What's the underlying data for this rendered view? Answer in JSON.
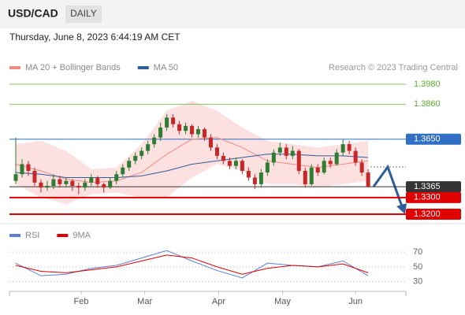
{
  "header": {
    "symbol": "USD/CAD",
    "period": "DAILY",
    "timestamp": "Thursday, June 8, 2023 6:44:19 AM CET",
    "credit": "Research © 2023 Trading Central"
  },
  "chart_data": [
    {
      "type": "candlestick",
      "up_color": "#2e7d32",
      "down_color": "#c62828",
      "xlim": [
        -1,
        62
      ],
      "ylim": [
        1.3148,
        1.406
      ],
      "candles": [
        [
          1.34,
          1.366,
          1.338,
          1.344
        ],
        [
          1.344,
          1.353,
          1.342,
          1.35
        ],
        [
          1.35,
          1.352,
          1.343,
          1.346
        ],
        [
          1.346,
          1.348,
          1.337,
          1.339
        ],
        [
          1.339,
          1.341,
          1.333,
          1.336
        ],
        [
          1.336,
          1.34,
          1.334,
          1.337
        ],
        [
          1.337,
          1.344,
          1.335,
          1.341
        ],
        [
          1.341,
          1.343,
          1.336,
          1.338
        ],
        [
          1.338,
          1.342,
          1.336,
          1.34
        ],
        [
          1.34,
          1.341,
          1.334,
          1.337
        ],
        [
          1.337,
          1.339,
          1.332,
          1.336
        ],
        [
          1.336,
          1.341,
          1.334,
          1.339
        ],
        [
          1.339,
          1.344,
          1.337,
          1.342
        ],
        [
          1.342,
          1.343,
          1.336,
          1.338
        ],
        [
          1.338,
          1.339,
          1.333,
          1.336
        ],
        [
          1.336,
          1.342,
          1.335,
          1.34
        ],
        [
          1.34,
          1.346,
          1.338,
          1.344
        ],
        [
          1.344,
          1.35,
          1.342,
          1.348
        ],
        [
          1.348,
          1.354,
          1.346,
          1.352
        ],
        [
          1.352,
          1.357,
          1.35,
          1.355
        ],
        [
          1.355,
          1.36,
          1.353,
          1.358
        ],
        [
          1.358,
          1.364,
          1.356,
          1.362
        ],
        [
          1.362,
          1.368,
          1.36,
          1.366
        ],
        [
          1.366,
          1.375,
          1.364,
          1.372
        ],
        [
          1.372,
          1.38,
          1.37,
          1.378
        ],
        [
          1.378,
          1.38,
          1.372,
          1.374
        ],
        [
          1.374,
          1.376,
          1.368,
          1.37
        ],
        [
          1.37,
          1.375,
          1.368,
          1.373
        ],
        [
          1.373,
          1.374,
          1.366,
          1.368
        ],
        [
          1.368,
          1.373,
          1.366,
          1.371
        ],
        [
          1.371,
          1.372,
          1.364,
          1.366
        ],
        [
          1.366,
          1.368,
          1.358,
          1.36
        ],
        [
          1.36,
          1.362,
          1.353,
          1.355
        ],
        [
          1.355,
          1.357,
          1.35,
          1.352
        ],
        [
          1.352,
          1.354,
          1.347,
          1.349
        ],
        [
          1.349,
          1.354,
          1.347,
          1.352
        ],
        [
          1.352,
          1.353,
          1.344,
          1.346
        ],
        [
          1.346,
          1.348,
          1.34,
          1.342
        ],
        [
          1.342,
          1.344,
          1.335,
          1.338
        ],
        [
          1.338,
          1.347,
          1.336,
          1.345
        ],
        [
          1.345,
          1.353,
          1.343,
          1.351
        ],
        [
          1.351,
          1.359,
          1.349,
          1.357
        ],
        [
          1.357,
          1.363,
          1.355,
          1.36
        ],
        [
          1.36,
          1.362,
          1.353,
          1.355
        ],
        [
          1.355,
          1.361,
          1.353,
          1.358
        ],
        [
          1.358,
          1.359,
          1.344,
          1.346
        ],
        [
          1.346,
          1.348,
          1.336,
          1.338
        ],
        [
          1.338,
          1.35,
          1.337,
          1.348
        ],
        [
          1.348,
          1.35,
          1.343,
          1.345
        ],
        [
          1.345,
          1.354,
          1.344,
          1.352
        ],
        [
          1.352,
          1.354,
          1.348,
          1.35
        ],
        [
          1.35,
          1.359,
          1.349,
          1.357
        ],
        [
          1.357,
          1.365,
          1.355,
          1.362
        ],
        [
          1.362,
          1.364,
          1.356,
          1.358
        ],
        [
          1.358,
          1.36,
          1.349,
          1.351
        ],
        [
          1.351,
          1.353,
          1.343,
          1.345
        ],
        [
          1.345,
          1.347,
          1.336,
          1.3365
        ]
      ],
      "x": [
        0,
        4,
        8,
        12,
        16,
        20,
        24,
        28,
        32,
        36,
        40,
        44,
        48,
        52,
        56
      ],
      "band": {
        "color": "#fde0e0",
        "upper": [
          1.362,
          1.364,
          1.358,
          1.347,
          1.348,
          1.362,
          1.382,
          1.388,
          1.382,
          1.372,
          1.364,
          1.362,
          1.36,
          1.362,
          1.364
        ],
        "lower": [
          1.338,
          1.33,
          1.326,
          1.332,
          1.333,
          1.33,
          1.33,
          1.342,
          1.35,
          1.346,
          1.338,
          1.338,
          1.336,
          1.338,
          1.34
        ]
      },
      "series": [
        {
          "name": "MA 20 + Bollinger Bands",
          "color": "#f28b82",
          "values": [
            1.35,
            1.346,
            1.341,
            1.339,
            1.34,
            1.345,
            1.356,
            1.365,
            1.366,
            1.36,
            1.352,
            1.35,
            1.348,
            1.35,
            1.352
          ]
        },
        {
          "name": "MA 50",
          "color": "#2f5d9a",
          "values": [
            1.345,
            1.344,
            1.342,
            1.342,
            1.342,
            1.343,
            1.346,
            1.35,
            1.352,
            1.354,
            1.356,
            1.356,
            1.355,
            1.355,
            1.354
          ]
        }
      ],
      "levels": [
        {
          "value": 1.398,
          "label": "1.3980",
          "color": "#5cad2e",
          "boxed": false
        },
        {
          "value": 1.386,
          "label": "1.3860",
          "color": "#5cad2e",
          "boxed": false
        },
        {
          "value": 1.365,
          "label": "1.3650",
          "color": "#2f6fc4",
          "boxed": true
        },
        {
          "value": 1.3365,
          "label": "1.3365",
          "color": "#333333",
          "boxed": true
        },
        {
          "value": 1.33,
          "label": "1.3300",
          "color": "#e00000",
          "boxed": true
        },
        {
          "value": 1.32,
          "label": "1.3200",
          "color": "#e00000",
          "boxed": true
        }
      ]
    },
    {
      "type": "line",
      "xlim": [
        -1,
        62
      ],
      "ylim": [
        19,
        102
      ],
      "yticks": [
        30,
        50,
        70
      ],
      "grid": true,
      "xticks": [
        {
          "value": 10.4,
          "label": "Feb"
        },
        {
          "value": 20.5,
          "label": "Mar"
        },
        {
          "value": 32.25,
          "label": "Apr"
        },
        {
          "value": 42.4,
          "label": "May"
        },
        {
          "value": 54,
          "label": "Jun"
        }
      ],
      "x": [
        0,
        4,
        8,
        12,
        16,
        20,
        24,
        28,
        32,
        36,
        40,
        44,
        48,
        52,
        56
      ],
      "series": [
        {
          "name": "RSI",
          "color": "#5b7fd6",
          "values": [
            55,
            38,
            40,
            48,
            52,
            62,
            72,
            58,
            45,
            35,
            55,
            52,
            50,
            58,
            38
          ]
        },
        {
          "name": "9MA",
          "color": "#e00000",
          "values": [
            52,
            44,
            42,
            46,
            50,
            58,
            66,
            62,
            50,
            40,
            48,
            52,
            50,
            54,
            42
          ]
        }
      ]
    }
  ]
}
